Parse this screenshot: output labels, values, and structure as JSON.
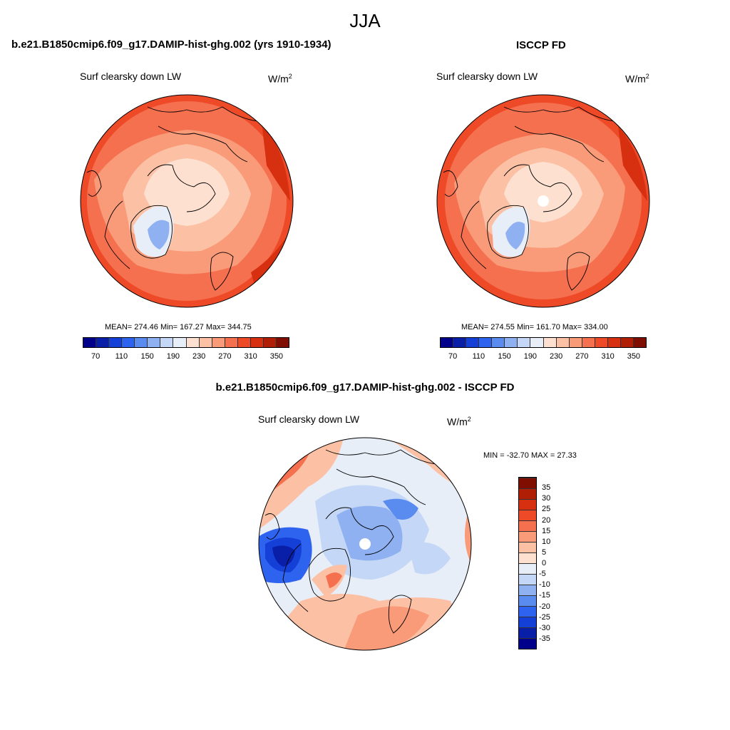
{
  "season": "JJA",
  "panels": [
    {
      "title": "b.e21.B1850cmip6.f09_g17.DAMIP-hist-ghg.002 (yrs 1910-1934)",
      "variable": "Surf clearsky down LW",
      "units_base": "W/m",
      "units_exp": "2",
      "stats": "MEAN= 274.46  Min= 167.27  Max= 344.75"
    },
    {
      "title": "ISCCP FD",
      "variable": "Surf clearsky down LW",
      "units_base": "W/m",
      "units_exp": "2",
      "stats": "MEAN= 274.55  Min= 161.70  Max= 334.00"
    },
    {
      "title": "b.e21.B1850cmip6.f09_g17.DAMIP-hist-ghg.002 - ISCCP FD",
      "variable": "Surf clearsky down LW",
      "units_base": "W/m",
      "units_exp": "2",
      "stats": "MIN = -32.70 MAX =  27.33"
    }
  ],
  "abs_colorbar": {
    "colors": [
      "#00008b",
      "#0a1fa8",
      "#1440d8",
      "#2e63f0",
      "#5a8cf0",
      "#8fb1f2",
      "#c4d7f6",
      "#e8eef8",
      "#fde0cf",
      "#fcc0a4",
      "#f99a78",
      "#f5704f",
      "#ee4a28",
      "#d73010",
      "#b01e06",
      "#7f0d00"
    ],
    "labels": [
      "70",
      "110",
      "150",
      "190",
      "230",
      "270",
      "310",
      "350"
    ]
  },
  "diff_colorbar": {
    "colors": [
      "#00008b",
      "#0a1fa8",
      "#1440d8",
      "#2e63f0",
      "#5a8cf0",
      "#8fb1f2",
      "#c4d7f6",
      "#e8eef8",
      "#fde0cf",
      "#fcc0a4",
      "#f99a78",
      "#f5704f",
      "#ee4a28",
      "#d73010",
      "#b01e06",
      "#7f0d00"
    ],
    "labels": [
      "-35",
      "-30",
      "-25",
      "-20",
      "-15",
      "-10",
      "-5",
      "0",
      "5",
      "10",
      "15",
      "20",
      "25",
      "30",
      "35"
    ]
  }
}
